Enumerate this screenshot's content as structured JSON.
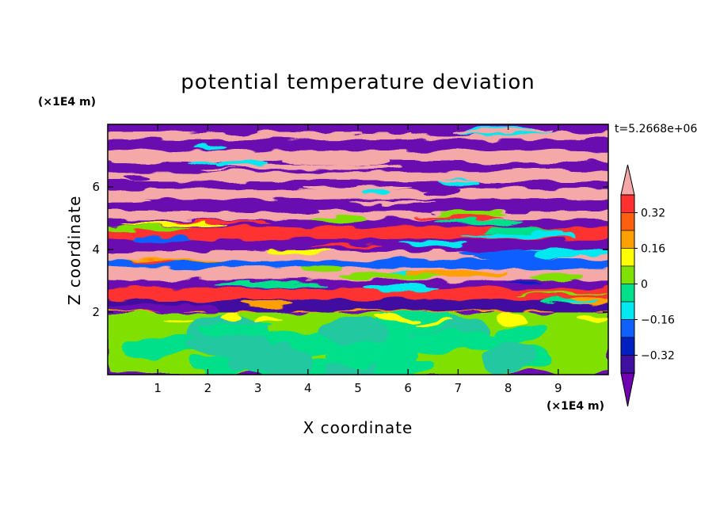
{
  "chart_data": {
    "type": "heatmap",
    "title": "potential temperature deviation",
    "xlabel": "X coordinate",
    "ylabel": "Z coordinate",
    "x_unit": "(×1E4 m)",
    "y_unit": "(×1E4 m)",
    "time_label": "t=5.2668e+06",
    "xlim": [
      0,
      10
    ],
    "ylim": [
      0,
      8
    ],
    "x_ticks": [
      1,
      2,
      3,
      4,
      5,
      6,
      7,
      8,
      9
    ],
    "y_ticks": [
      2,
      4,
      6
    ],
    "colorbar": {
      "levels": [
        -0.4,
        -0.32,
        -0.24,
        -0.16,
        -0.08,
        0,
        0.08,
        0.16,
        0.24,
        0.32,
        0.4
      ],
      "labels": [
        "0.32",
        "0.16",
        "0",
        "−0.16",
        "−0.32"
      ],
      "label_values": [
        0.32,
        0.16,
        0,
        -0.16,
        -0.32
      ],
      "colors_top_to_bottom": [
        "#f4a8a8",
        "#ff3030",
        "#ff6010",
        "#ffa000",
        "#ffff00",
        "#80e000",
        "#00e08a",
        "#00e8f0",
        "#1060ff",
        "#0020c0",
        "#4010a0",
        "#7000b0"
      ]
    },
    "regions": {
      "stratified_bands_zone": [
        2,
        8
      ],
      "lower_mixed_zone": [
        0,
        2
      ],
      "band_dominant_colors": [
        "#f4a8a8",
        "#6a10b0"
      ],
      "lower_zone_colors": [
        "#80e000",
        "#00e08a"
      ]
    }
  }
}
